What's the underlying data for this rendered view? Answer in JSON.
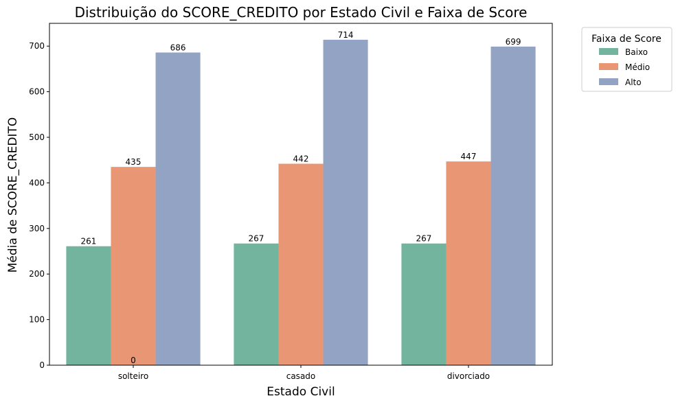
{
  "chart_data": {
    "type": "bar",
    "title": "Distribuição do SCORE_CREDITO por Estado Civil e Faixa de Score",
    "xlabel": "Estado Civil",
    "ylabel": "Média de SCORE_CREDITO",
    "categories": [
      "solteiro",
      "casado",
      "divorciado"
    ],
    "series": [
      {
        "name": "Baixo",
        "values": [
          261,
          267,
          267
        ],
        "color": "#72b49e"
      },
      {
        "name": "Médio",
        "values": [
          435,
          442,
          447
        ],
        "color": "#e89673"
      },
      {
        "name": "Alto",
        "values": [
          686,
          714,
          699
        ],
        "color": "#93a3c3"
      }
    ],
    "extra_labels": [
      {
        "category": "solteiro",
        "text": "0"
      }
    ],
    "ylim": [
      0,
      750
    ],
    "yticks": [
      0,
      100,
      200,
      300,
      400,
      500,
      600,
      700
    ],
    "grid": false,
    "legend": {
      "title": "Faixa de Score",
      "placement": "outside-top-right"
    }
  }
}
